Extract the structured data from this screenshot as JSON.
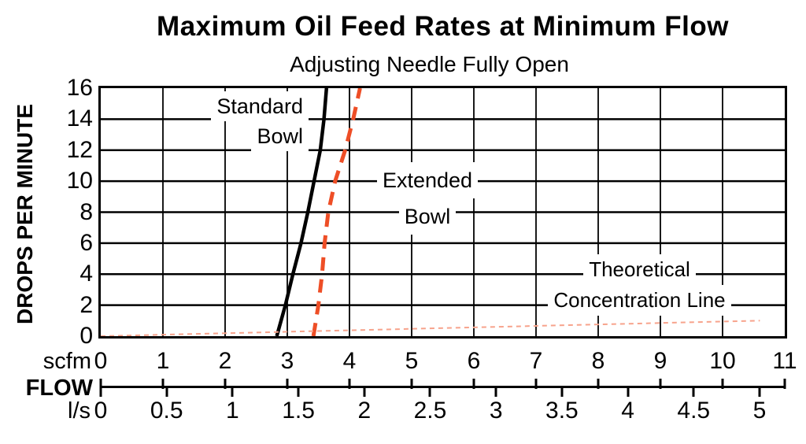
{
  "title": "Maximum Oil Feed Rates at Minimum Flow",
  "subtitle": "Adjusting Needle Fully Open",
  "chart_data": {
    "type": "line",
    "title": "Maximum Oil Feed Rates at Minimum Flow",
    "subtitle": "Adjusting Needle Fully Open",
    "xlabel": "FLOW",
    "grid": true,
    "xlim": [
      0,
      11
    ],
    "ylim": [
      0,
      16
    ],
    "y_axis": {
      "label": "DROPS PER MINUTE",
      "ticks": [
        0,
        2,
        4,
        6,
        8,
        10,
        12,
        14,
        16
      ]
    },
    "x_axis_scfm": {
      "unit": "scfm",
      "ticks": [
        0,
        1,
        2,
        3,
        4,
        5,
        6,
        7,
        8,
        9,
        10,
        11
      ]
    },
    "x_axis_ls": {
      "unit": "l/s",
      "ticks": [
        0,
        0.5,
        1,
        1.5,
        2,
        2.5,
        3,
        3.5,
        4,
        4.5,
        5
      ],
      "scfm_per_unit": 2.1189
    },
    "series": [
      {
        "name": "Standard Bowl",
        "style": "solid",
        "color": "#000000",
        "points": [
          [
            2.83,
            0
          ],
          [
            2.97,
            2
          ],
          [
            3.09,
            4
          ],
          [
            3.22,
            6
          ],
          [
            3.33,
            8
          ],
          [
            3.43,
            10
          ],
          [
            3.53,
            12
          ],
          [
            3.59,
            14
          ],
          [
            3.63,
            16
          ]
        ]
      },
      {
        "name": "Extended Bowl",
        "style": "dashed",
        "color": "#ee4e26",
        "points": [
          [
            3.42,
            0
          ],
          [
            3.5,
            2
          ],
          [
            3.56,
            4
          ],
          [
            3.6,
            6
          ],
          [
            3.66,
            8
          ],
          [
            3.77,
            10
          ],
          [
            3.93,
            12
          ],
          [
            4.06,
            14
          ],
          [
            4.17,
            16
          ]
        ]
      },
      {
        "name": "Theoretical Concentration Line",
        "style": "fine-dashed",
        "color": "#f7a38c",
        "points": [
          [
            0,
            0
          ],
          [
            10.6,
            1.0
          ]
        ]
      }
    ],
    "annotations": {
      "standard": {
        "line1": "Standard",
        "line2": "Bowl"
      },
      "extended": {
        "line1": "Extended",
        "line2": "Bowl"
      },
      "theoretical": {
        "line1": "Theoretical",
        "line2": "Concentration Line"
      }
    }
  }
}
